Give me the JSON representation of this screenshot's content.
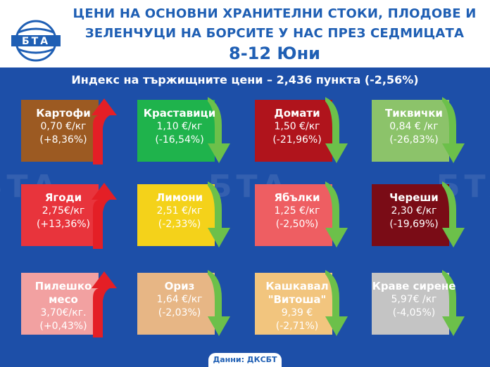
{
  "header": {
    "logo_text": "БТА",
    "title_line1": "ЦЕНИ НА ОСНОВНИ ХРАНИТЕЛНИ СТОКИ, ПЛОДОВЕ И",
    "title_line2": "ЗЕЛЕНЧУЦИ НА БОРСИТЕ У НАС ПРЕЗ СЕДМИЦАТА",
    "date": "8-12 Юни"
  },
  "index_line": "Индекс на тържищните цени – 2,436 пункта (-2,56%)",
  "items": [
    {
      "name": "Картофи",
      "price": "0,70 €/кг",
      "change": "(+8,36%)",
      "direction": "up",
      "color": "#9c5a22"
    },
    {
      "name": "Краставици",
      "price": "1,10 €/кг",
      "change": "(-16,54%)",
      "direction": "down",
      "color": "#1fb34c"
    },
    {
      "name": "Домати",
      "price": "1,50 €/кг",
      "change": "(-21,96%)",
      "direction": "down",
      "color": "#b0141c"
    },
    {
      "name": "Тиквички",
      "price": "0,84 € /кг",
      "change": "(-26,83%)",
      "direction": "down",
      "color": "#8cc36a"
    },
    {
      "name": "Ягоди",
      "price": "2,75€/кг",
      "change": "(+13,36%)",
      "direction": "up",
      "color": "#e8343c"
    },
    {
      "name": "Лимони",
      "price": "2,51 €/кг",
      "change": "(-2,33%)",
      "direction": "down",
      "color": "#f4d21a"
    },
    {
      "name": "Ябълки",
      "price": "1,25 €/кг",
      "change": "(-2,50%)",
      "direction": "down",
      "color": "#ee5e62"
    },
    {
      "name": "Череши",
      "price": "2,30 €/кг",
      "change": "(-19,69%)",
      "direction": "down",
      "color": "#7a0c16"
    },
    {
      "name": "Пилешко месо",
      "price": "3,70€/кг.",
      "change": "(+0,43%)",
      "direction": "up",
      "color": "#f2a1a1"
    },
    {
      "name": "Ориз",
      "price": "1,64 €/кг",
      "change": "(-2,03%)",
      "direction": "down",
      "color": "#e7b685"
    },
    {
      "name": "Кашкавал \"Витоша\"",
      "price": "9,39 €",
      "change": "(-2,71%)",
      "direction": "down",
      "color": "#f2c57e"
    },
    {
      "name": "Краве сирене",
      "price": "5,97€ /кг",
      "change": "(-4,05%)",
      "direction": "down",
      "color": "#c4c4c4"
    }
  ],
  "watermark": "БТА",
  "footer": "Данни: ДКСБТ",
  "colors": {
    "background": "#1d4fa8",
    "title": "#1f5fb4",
    "up_arrow": "#e41f26",
    "down_arrow": "#6cc04a"
  }
}
